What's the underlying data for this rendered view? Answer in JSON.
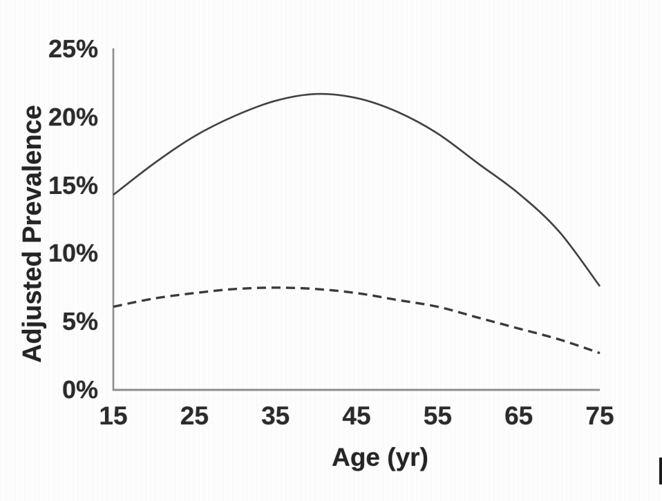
{
  "chart_data": {
    "type": "line",
    "title": "",
    "xlabel": "Age (yr)",
    "ylabel": "Adjusted Prevalence",
    "xlim": [
      15,
      75
    ],
    "ylim": [
      0,
      25
    ],
    "grid": false,
    "legend_position": "none",
    "x_tick_labels": [
      "15",
      "25",
      "35",
      "45",
      "55",
      "65",
      "75"
    ],
    "x_tick_values": [
      15,
      25,
      35,
      45,
      55,
      65,
      75
    ],
    "y_tick_labels": [
      "0%",
      "5%",
      "10%",
      "15%",
      "20%",
      "25%"
    ],
    "y_tick_values": [
      0,
      5,
      10,
      15,
      20,
      25
    ],
    "x": [
      15,
      20,
      25,
      30,
      35,
      40,
      45,
      50,
      55,
      60,
      65,
      70,
      75
    ],
    "series": [
      {
        "name": "solid-curve",
        "style": "solid",
        "values": [
          14.3,
          16.6,
          18.6,
          20.1,
          21.2,
          21.7,
          21.4,
          20.4,
          18.8,
          16.6,
          14.4,
          11.6,
          7.6
        ]
      },
      {
        "name": "dashed-curve",
        "style": "dashed",
        "values": [
          6.1,
          6.7,
          7.1,
          7.4,
          7.5,
          7.4,
          7.1,
          6.6,
          6.1,
          5.3,
          4.5,
          3.7,
          2.7
        ]
      }
    ],
    "colors": {
      "solid_line": "#424242",
      "dashed_line": "#3a3a3a",
      "axis": "#8d8d8d",
      "text": "#2b2b2b"
    }
  },
  "artifacts": {
    "cursor_bar_color": "#1c1c1c"
  }
}
